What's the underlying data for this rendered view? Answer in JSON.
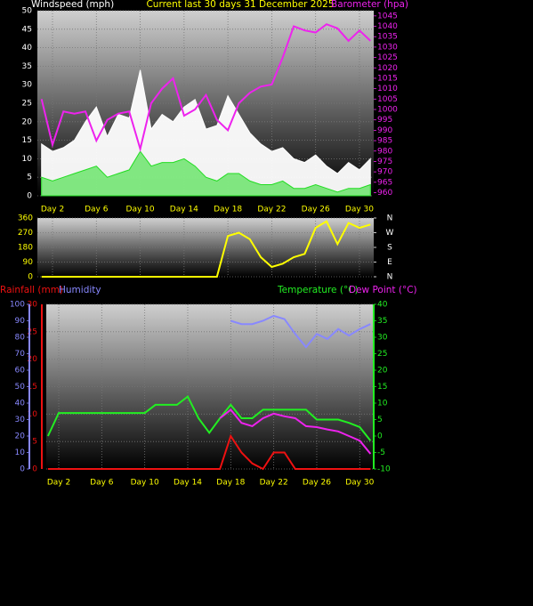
{
  "chart_data": [
    {
      "type": "line",
      "title": "Current last 30 days 31 December 2025",
      "ylabel": "Windspeed (mph)",
      "y2label": "Barometer (hpa)",
      "x": [
        1,
        2,
        3,
        4,
        5,
        6,
        7,
        8,
        9,
        10,
        11,
        12,
        13,
        14,
        15,
        16,
        17,
        18,
        19,
        20,
        21,
        22,
        23,
        24,
        25,
        26,
        27,
        28,
        29,
        30,
        31
      ],
      "xlim": [
        0.62,
        31.3
      ],
      "xticks": [
        {
          "value": 2,
          "label": "Day 2"
        },
        {
          "value": 6,
          "label": "Day 6"
        },
        {
          "value": 10,
          "label": "Day 10"
        },
        {
          "value": 14,
          "label": "Day 14"
        },
        {
          "value": 18,
          "label": "Day 18"
        },
        {
          "value": 22,
          "label": "Day 22"
        },
        {
          "value": 26,
          "label": "Day 26"
        },
        {
          "value": 30,
          "label": "Day 30"
        }
      ],
      "ylim": [
        0,
        50
      ],
      "yticks": [
        0,
        5,
        10,
        15,
        20,
        25,
        30,
        35,
        40,
        45,
        50
      ],
      "y2lim": [
        958.5,
        1047.5
      ],
      "y2ticks": [
        960,
        965,
        970,
        975,
        980,
        985,
        990,
        995,
        1000,
        1005,
        1010,
        1015,
        1020,
        1025,
        1030,
        1035,
        1040,
        1045
      ],
      "grid": true,
      "series": [
        {
          "color": "#ffffff",
          "fill": true,
          "values": [
            14,
            12,
            13,
            15,
            20,
            24,
            16,
            22,
            21,
            34,
            18,
            22,
            20,
            24,
            26,
            18,
            19,
            27,
            22,
            17,
            14,
            12,
            13,
            10,
            9,
            11,
            8,
            6,
            9,
            7,
            10
          ]
        },
        {
          "color": "#22dd22",
          "fill": true,
          "values": [
            5,
            4,
            5,
            6,
            7,
            8,
            5,
            6,
            7,
            12,
            8,
            9,
            9,
            10,
            8,
            5,
            4,
            6,
            6,
            4,
            3,
            3,
            4,
            2,
            2,
            3,
            2,
            1,
            2,
            2,
            3
          ]
        },
        {
          "color": "#ee22ee",
          "axis": "y2",
          "values": [
            1005,
            983,
            999,
            998,
            999,
            985,
            995,
            998,
            999,
            981,
            1003,
            1010,
            1015,
            997,
            1000,
            1007,
            995,
            990,
            1003,
            1008,
            1011,
            1012,
            1025,
            1040,
            1038,
            1037,
            1041,
            1039,
            1033,
            1038,
            1033
          ]
        }
      ]
    },
    {
      "type": "line",
      "x": [
        1,
        2,
        3,
        4,
        5,
        6,
        7,
        8,
        9,
        10,
        11,
        12,
        13,
        14,
        15,
        16,
        17,
        18,
        19,
        20,
        21,
        22,
        23,
        24,
        25,
        26,
        27,
        28,
        29,
        30,
        31
      ],
      "xlim": [
        0.62,
        31.3
      ],
      "xticks": [
        2,
        6,
        10,
        14,
        18,
        22,
        26,
        30
      ],
      "ylim": [
        0,
        360
      ],
      "yticks": [
        0,
        90,
        180,
        270,
        360
      ],
      "y2lim": [
        0,
        360
      ],
      "y2ticks": [
        {
          "value": 0,
          "label": "N"
        },
        {
          "value": 90,
          "label": "E"
        },
        {
          "value": 180,
          "label": "S"
        },
        {
          "value": 270,
          "label": "W"
        },
        {
          "value": 360,
          "label": "N"
        }
      ],
      "grid": true,
      "series": [
        {
          "color": "#ffff00",
          "values": [
            0,
            0,
            0,
            0,
            0,
            0,
            0,
            0,
            0,
            0,
            0,
            0,
            0,
            0,
            0,
            0,
            0,
            250,
            270,
            230,
            120,
            60,
            80,
            120,
            140,
            300,
            340,
            200,
            330,
            300,
            320
          ]
        }
      ]
    },
    {
      "type": "line",
      "x": [
        1,
        2,
        3,
        4,
        5,
        6,
        7,
        8,
        9,
        10,
        11,
        12,
        13,
        14,
        15,
        16,
        17,
        18,
        19,
        20,
        21,
        22,
        23,
        24,
        25,
        26,
        27,
        28,
        29,
        30,
        31
      ],
      "xlim": [
        0.84,
        31.3
      ],
      "xticks": [
        {
          "value": 2,
          "label": "Day 2"
        },
        {
          "value": 6,
          "label": "Day 6"
        },
        {
          "value": 10,
          "label": "Day 10"
        },
        {
          "value": 14,
          "label": "Day 14"
        },
        {
          "value": 18,
          "label": "Day 18"
        },
        {
          "value": 22,
          "label": "Day 22"
        },
        {
          "value": 26,
          "label": "Day 26"
        },
        {
          "value": 30,
          "label": "Day 30"
        }
      ],
      "ylim": [
        0,
        30
      ],
      "yticks": [
        0,
        5,
        10,
        15,
        20,
        25,
        30
      ],
      "y2lim": [
        -10,
        40
      ],
      "y2ticks": [
        -10,
        -5,
        0,
        5,
        10,
        15,
        20,
        25,
        30,
        35,
        40
      ],
      "y3lim": [
        0,
        100
      ],
      "y3ticks": [
        0,
        10,
        20,
        30,
        40,
        50,
        60,
        70,
        80,
        90,
        100
      ],
      "grid": true,
      "series": [
        {
          "name": "Rainfall (mm)",
          "color": "#ee1111",
          "values": [
            0,
            0,
            0,
            0,
            0,
            0,
            0,
            0,
            0,
            0,
            0,
            0,
            0,
            0,
            0,
            0,
            0,
            6,
            3,
            1,
            0,
            3,
            3,
            0,
            0,
            0,
            0,
            0,
            0,
            0,
            0
          ]
        },
        {
          "name": "Humidity",
          "color": "#8888ff",
          "axis": "y3",
          "values": [
            null,
            null,
            null,
            null,
            null,
            null,
            null,
            null,
            null,
            null,
            null,
            null,
            null,
            null,
            null,
            null,
            null,
            90,
            88,
            88,
            90,
            93,
            91,
            82,
            74,
            82,
            79,
            85,
            81,
            85,
            88
          ]
        },
        {
          "name": "Temperature (°C)",
          "color": "#22ee22",
          "axis": "y2",
          "values": [
            0,
            7,
            7,
            7,
            7,
            7,
            7,
            7,
            7,
            7,
            9.5,
            9.5,
            9.5,
            12,
            5.4,
            1,
            5.4,
            9.5,
            5.4,
            5.4,
            8,
            8,
            8,
            8,
            8,
            5,
            5,
            5,
            4,
            2.7,
            -1.4
          ]
        },
        {
          "name": "Dew Point (°C)",
          "color": "#ee22ee",
          "axis": "y2",
          "values": [
            null,
            null,
            null,
            null,
            null,
            null,
            null,
            null,
            null,
            null,
            null,
            null,
            null,
            null,
            null,
            null,
            5.4,
            8,
            4,
            3,
            5.4,
            6.8,
            6,
            5.4,
            3,
            2.7,
            2,
            1.4,
            0,
            -1.4,
            -5.4
          ]
        }
      ]
    }
  ]
}
